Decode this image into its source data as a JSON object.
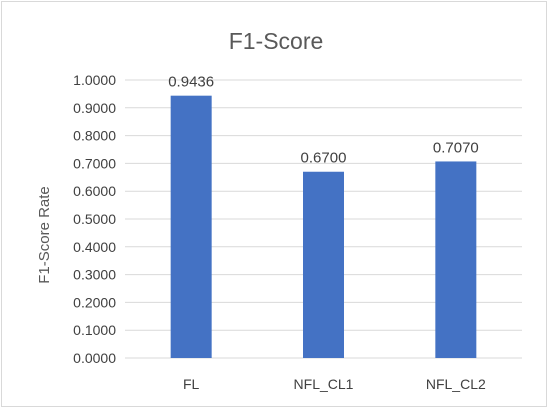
{
  "chart_data": {
    "type": "bar",
    "title": "F1-Score",
    "xlabel": "",
    "ylabel": "F1-Score Rate",
    "categories": [
      "FL",
      "NFL_CL1",
      "NFL_CL2"
    ],
    "values": [
      0.9436,
      0.67,
      0.707
    ],
    "data_labels": [
      "0.9436",
      "0.6700",
      "0.7070"
    ],
    "ylim": [
      0,
      1.0
    ],
    "yticks": [
      0.0,
      0.1,
      0.2,
      0.3,
      0.4,
      0.5,
      0.6,
      0.7,
      0.8,
      0.9,
      1.0
    ],
    "ytick_labels": [
      "0.0000",
      "0.1000",
      "0.2000",
      "0.3000",
      "0.4000",
      "0.5000",
      "0.6000",
      "0.7000",
      "0.8000",
      "0.9000",
      "1.0000"
    ],
    "grid": true,
    "legend": "none",
    "bar_color": "#4472c4"
  }
}
